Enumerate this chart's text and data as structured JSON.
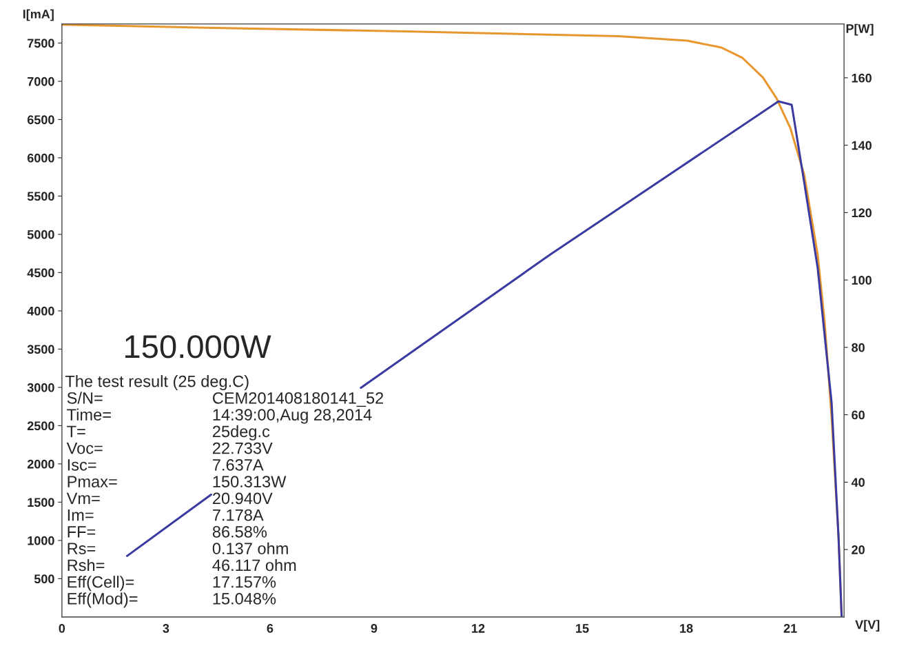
{
  "chart_data": {
    "type": "line",
    "xlabel": "V[V]",
    "ylabel": "I[mA]",
    "y2label": "P[W]",
    "xlim": [
      0,
      22.55
    ],
    "xticks": [
      0,
      3,
      6,
      9,
      12,
      15,
      18,
      21
    ],
    "ylim": [
      0,
      7750
    ],
    "yticks": [
      500,
      1000,
      1500,
      2000,
      2500,
      3000,
      3500,
      4000,
      4500,
      5000,
      5500,
      6000,
      6500,
      7000,
      7500
    ],
    "y2lim": [
      0,
      176
    ],
    "y2ticks": [
      20,
      40,
      60,
      80,
      100,
      120,
      140,
      160
    ],
    "grid": false,
    "legend": false,
    "marker": "none",
    "line_style": "solid",
    "series": [
      {
        "color": "#e8962e",
        "x": [
          0,
          4.16,
          10.1,
          16.05,
          18.03,
          19.02,
          19.61,
          20.21,
          20.6,
          21.0,
          21.4,
          21.79,
          21.99,
          22.19,
          22.39,
          22.48
        ],
        "values": [
          7740,
          7700,
          7650,
          7590,
          7530,
          7440,
          7310,
          7050,
          6780,
          6390,
          5780,
          4730,
          3850,
          2620,
          1050,
          0
        ]
      },
      {
        "color": "#3a3aa0",
        "axis": "y2",
        "x": [
          1.88,
          4.3,
          6.0,
          8.62,
          14.07,
          20.66,
          21.04,
          21.4,
          21.79,
          22.19,
          22.39,
          22.48
        ],
        "values": [
          18.1,
          36.3,
          null,
          68.0,
          107.5,
          153.0,
          152.0,
          129.0,
          103.5,
          63.6,
          23.7,
          0
        ]
      }
    ],
    "annotations": [
      "150.000W",
      "The test result (25 deg.C)",
      "S/N=",
      "CEM201408180141_52",
      "Time=",
      "14:39:00,Aug 28,2014",
      "T=",
      "25deg.c",
      "Voc=",
      "22.733V",
      "Isc=",
      "7.637A",
      "Pmax=",
      "150.313W",
      "Vm=",
      "20.940V",
      "Im=",
      "7.178A",
      "FF=",
      "86.58%",
      "Rs=",
      "0.137 ohm",
      "Rsh=",
      "46.117 ohm",
      "Eff(Cell)=",
      "17.157%",
      "Eff(Mod)=",
      "15.048%"
    ]
  }
}
